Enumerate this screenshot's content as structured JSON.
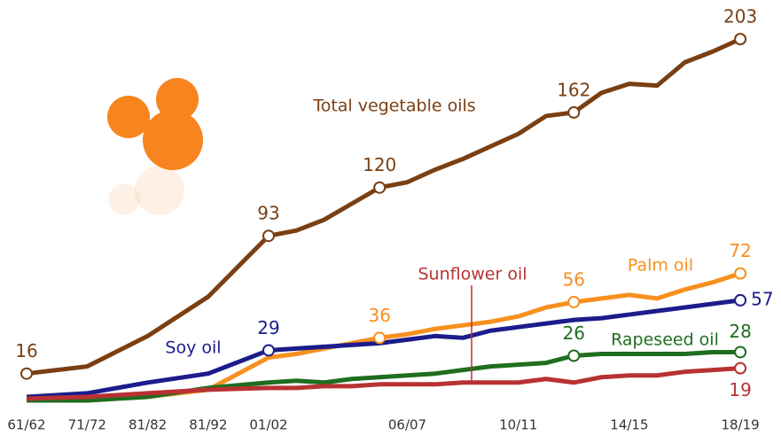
{
  "chart_data": {
    "type": "line",
    "categories": [
      "61/62",
      "71/72",
      "81/82",
      "81/92",
      "01/02",
      null,
      null,
      null,
      null,
      "06/07",
      null,
      null,
      null,
      "10/11",
      null,
      null,
      null,
      "14/15",
      null,
      null,
      null,
      "18/19"
    ],
    "ylim": [
      0,
      210
    ],
    "series": [
      {
        "name": "Total vegetable oils",
        "color": "#7a3f12",
        "values": [
          16,
          20,
          37,
          59,
          93,
          96,
          102,
          111,
          120,
          123,
          130,
          136,
          143,
          150,
          160,
          162,
          173,
          178,
          177,
          190,
          196,
          203
        ],
        "value_labels": [
          "16",
          null,
          null,
          null,
          "93",
          null,
          null,
          null,
          "120",
          null,
          null,
          null,
          null,
          null,
          null,
          "162",
          null,
          null,
          null,
          null,
          null,
          "203"
        ]
      },
      {
        "name": "Palm oil",
        "color": "#f7901e",
        "values": [
          1,
          1,
          3,
          7,
          25,
          27,
          30,
          33,
          36,
          38,
          41,
          43,
          45,
          48,
          53,
          56,
          58,
          60,
          58,
          63,
          67,
          72
        ],
        "value_labels": [
          null,
          null,
          null,
          null,
          null,
          null,
          null,
          null,
          "36",
          null,
          null,
          null,
          null,
          null,
          null,
          "56",
          null,
          null,
          null,
          null,
          null,
          "72"
        ]
      },
      {
        "name": "Soy oil",
        "color": "#1c1c8c",
        "values": [
          3,
          5,
          11,
          16,
          29,
          30,
          31,
          32,
          33,
          35,
          37,
          36,
          40,
          42,
          44,
          46,
          47,
          49,
          51,
          53,
          55,
          57
        ],
        "value_labels": [
          null,
          null,
          null,
          null,
          "29",
          null,
          null,
          null,
          null,
          null,
          null,
          null,
          null,
          null,
          null,
          null,
          null,
          null,
          null,
          null,
          null,
          "57"
        ]
      },
      {
        "name": "Rapeseed oil",
        "color": "#1e6e1e",
        "values": [
          1,
          1,
          3,
          8,
          11,
          12,
          11,
          13,
          14,
          15,
          16,
          18,
          20,
          21,
          22,
          26,
          27,
          27,
          27,
          27,
          28,
          28
        ],
        "value_labels": [
          null,
          null,
          null,
          null,
          null,
          null,
          null,
          null,
          null,
          null,
          null,
          null,
          null,
          null,
          null,
          "26",
          null,
          null,
          null,
          null,
          null,
          "28"
        ]
      },
      {
        "name": "Sunflower oil",
        "color": "#b83232",
        "values": [
          2,
          3,
          5,
          7,
          8,
          8,
          9,
          9,
          10,
          10,
          10,
          11,
          11,
          11,
          13,
          11,
          14,
          15,
          15,
          17,
          18,
          19
        ],
        "value_labels": [
          null,
          null,
          null,
          null,
          null,
          null,
          null,
          null,
          null,
          null,
          null,
          null,
          null,
          null,
          null,
          null,
          null,
          null,
          null,
          null,
          null,
          "19"
        ]
      }
    ]
  }
}
